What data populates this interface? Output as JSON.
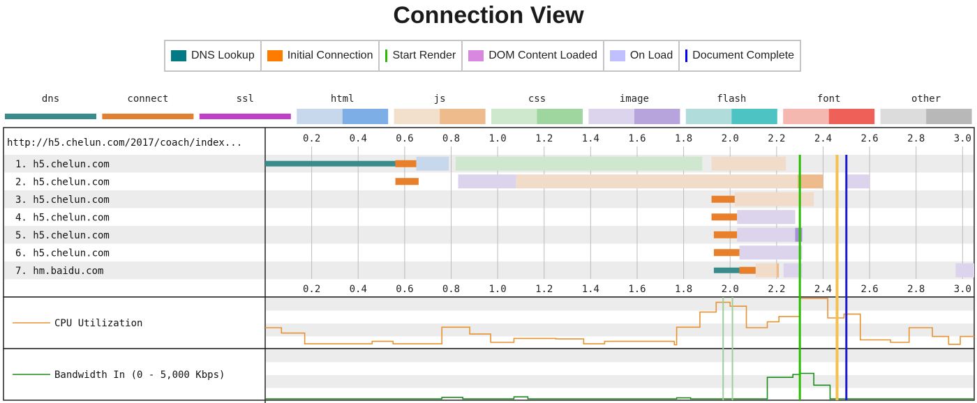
{
  "title": "Connection View",
  "legend": [
    {
      "label": "DNS Lookup",
      "color": "#007B84",
      "kind": "box"
    },
    {
      "label": "Initial Connection",
      "color": "#FF7B00",
      "kind": "box"
    },
    {
      "label": "Start Render",
      "color": "#28BC00",
      "kind": "line"
    },
    {
      "label": "DOM Content Loaded",
      "color": "#D888DF",
      "kind": "box"
    },
    {
      "label": "On Load",
      "color": "#C0C0FF",
      "kind": "box"
    },
    {
      "label": "Document Complete",
      "color": "#0000FF",
      "kind": "line"
    }
  ],
  "type_legend": [
    {
      "label": "dns",
      "colors": [
        "#3a8b8c",
        "#3a8b8c"
      ]
    },
    {
      "label": "connect",
      "colors": [
        "#e08030",
        "#e08030"
      ]
    },
    {
      "label": "ssl",
      "colors": [
        "#c040c8",
        "#c040c8"
      ]
    },
    {
      "label": "html",
      "colors": [
        "#c8d8ec",
        "#7eaee6"
      ]
    },
    {
      "label": "js",
      "colors": [
        "#f2e0cc",
        "#eebb8c"
      ]
    },
    {
      "label": "css",
      "colors": [
        "#cde8cd",
        "#9fd59f"
      ]
    },
    {
      "label": "image",
      "colors": [
        "#dcd4ec",
        "#b8a4dc"
      ]
    },
    {
      "label": "flash",
      "colors": [
        "#b0dcdc",
        "#4dc3c3"
      ]
    },
    {
      "label": "font",
      "colors": [
        "#f4b8b0",
        "#ee6058"
      ]
    },
    {
      "label": "other",
      "colors": [
        "#dcdcdc",
        "#b8b8b8"
      ]
    }
  ],
  "page_url": "http://h5.chelun.com/2017/coach/index...",
  "cpu_label": "CPU Utilization",
  "bandwidth_label": "Bandwidth In (0 - 5,000 Kbps)",
  "chart_data": {
    "type": "waterfall",
    "x_unit": "seconds",
    "xlim": [
      0,
      3.05
    ],
    "ticks": [
      "0.2",
      "0.4",
      "0.6",
      "0.8",
      "1.0",
      "1.2",
      "1.4",
      "1.6",
      "1.8",
      "2.0",
      "2.2",
      "2.4",
      "2.6",
      "2.8",
      "3.0"
    ],
    "tick_values": [
      0.2,
      0.4,
      0.6,
      0.8,
      1.0,
      1.2,
      1.4,
      1.6,
      1.8,
      2.0,
      2.2,
      2.4,
      2.6,
      2.8,
      3.0
    ],
    "markers": [
      {
        "name": "Start Render",
        "time": 2.3,
        "color": "#28BC00",
        "width": 3
      },
      {
        "name": "On Load",
        "time": 2.46,
        "color": "#f5c050",
        "width": 4
      },
      {
        "name": "Document Complete",
        "time": 2.5,
        "color": "#1a1acc",
        "width": 3
      }
    ],
    "rows": [
      {
        "label": "1. h5.chelun.com",
        "segments": [
          {
            "kind": "dns",
            "start": 0.0,
            "end": 0.56
          },
          {
            "kind": "connect",
            "start": 0.56,
            "end": 0.65
          },
          {
            "kind": "html-wait",
            "start": 0.65,
            "end": 0.79
          },
          {
            "kind": "css-wait",
            "start": 0.82,
            "end": 1.88
          },
          {
            "kind": "js-wait",
            "start": 1.92,
            "end": 2.24
          }
        ]
      },
      {
        "label": "2. h5.chelun.com",
        "segments": [
          {
            "kind": "connect",
            "start": 0.56,
            "end": 0.66
          },
          {
            "kind": "image-wait",
            "start": 0.83,
            "end": 1.08
          },
          {
            "kind": "js-wait",
            "start": 1.08,
            "end": 2.29
          },
          {
            "kind": "js",
            "start": 2.29,
            "end": 2.4
          },
          {
            "kind": "image-wait",
            "start": 2.5,
            "end": 2.6
          }
        ]
      },
      {
        "label": "3. h5.chelun.com",
        "segments": [
          {
            "kind": "connect",
            "start": 1.92,
            "end": 2.02
          },
          {
            "kind": "js-wait",
            "start": 2.02,
            "end": 2.36
          }
        ]
      },
      {
        "label": "4. h5.chelun.com",
        "segments": [
          {
            "kind": "connect",
            "start": 1.92,
            "end": 2.03
          },
          {
            "kind": "image-wait",
            "start": 2.03,
            "end": 2.28
          }
        ]
      },
      {
        "label": "5. h5.chelun.com",
        "segments": [
          {
            "kind": "connect",
            "start": 1.93,
            "end": 2.03
          },
          {
            "kind": "image-wait",
            "start": 2.03,
            "end": 2.28
          },
          {
            "kind": "image",
            "start": 2.28,
            "end": 2.31
          }
        ]
      },
      {
        "label": "6. h5.chelun.com",
        "segments": [
          {
            "kind": "connect",
            "start": 1.93,
            "end": 2.04
          },
          {
            "kind": "image-wait",
            "start": 2.04,
            "end": 2.31
          }
        ]
      },
      {
        "label": "7. hm.baidu.com",
        "segments": [
          {
            "kind": "dns",
            "start": 1.93,
            "end": 2.04
          },
          {
            "kind": "connect",
            "start": 2.04,
            "end": 2.11
          },
          {
            "kind": "js-wait",
            "start": 2.11,
            "end": 2.2
          },
          {
            "kind": "js",
            "start": 2.2,
            "end": 2.21
          },
          {
            "kind": "image-wait",
            "start": 2.23,
            "end": 2.31
          },
          {
            "kind": "image-wait",
            "start": 2.97,
            "end": 3.05
          }
        ]
      }
    ],
    "cpu_utilization": [
      [
        0.0,
        40
      ],
      [
        0.07,
        29
      ],
      [
        0.17,
        7
      ],
      [
        0.46,
        12
      ],
      [
        0.55,
        7
      ],
      [
        0.76,
        41
      ],
      [
        0.88,
        27
      ],
      [
        0.97,
        10
      ],
      [
        1.07,
        18
      ],
      [
        1.25,
        17
      ],
      [
        1.37,
        7
      ],
      [
        1.46,
        12
      ],
      [
        1.6,
        12
      ],
      [
        1.76,
        5
      ],
      [
        1.77,
        41
      ],
      [
        1.87,
        72
      ],
      [
        1.94,
        92
      ],
      [
        2.0,
        84
      ],
      [
        2.07,
        40
      ],
      [
        2.16,
        52
      ],
      [
        2.21,
        63
      ],
      [
        2.3,
        100
      ],
      [
        2.42,
        60
      ],
      [
        2.49,
        68
      ],
      [
        2.56,
        15
      ],
      [
        2.69,
        10
      ],
      [
        2.77,
        40
      ],
      [
        2.87,
        22
      ],
      [
        2.94,
        6
      ],
      [
        2.99,
        22
      ],
      [
        3.05,
        22
      ]
    ],
    "bandwidth_in": [
      [
        0.0,
        0
      ],
      [
        0.76,
        3
      ],
      [
        0.85,
        0
      ],
      [
        1.07,
        4
      ],
      [
        1.13,
        0
      ],
      [
        1.77,
        2
      ],
      [
        1.83,
        0
      ],
      [
        2.16,
        44
      ],
      [
        2.27,
        50
      ],
      [
        2.3,
        52
      ],
      [
        2.36,
        28
      ],
      [
        2.43,
        0
      ],
      [
        3.05,
        0
      ]
    ]
  }
}
